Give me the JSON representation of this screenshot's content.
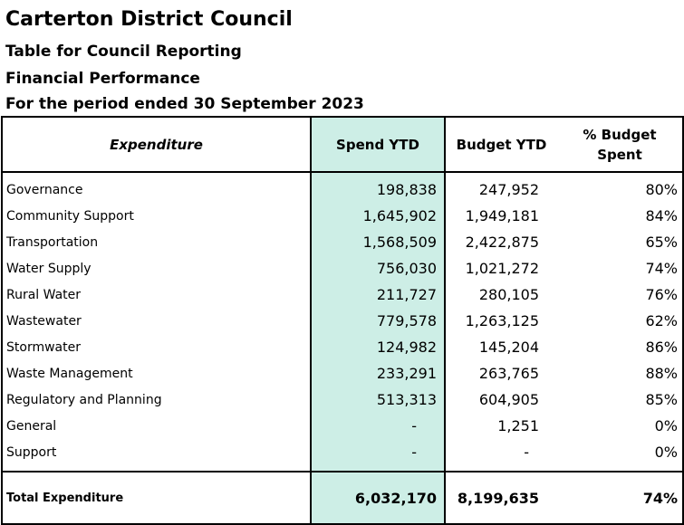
{
  "header": {
    "org": "Carterton District Council",
    "subtitle": "Table for Council Reporting",
    "section": "Financial Performance",
    "period": "For the period ended 30 September 2023"
  },
  "table": {
    "columns": [
      "Expenditure",
      "Spend YTD",
      "Budget YTD",
      "% Budget Spent"
    ],
    "rows": [
      {
        "name": "Governance",
        "spend": "198,838",
        "budget": "247,952",
        "pct": "80%"
      },
      {
        "name": "Community Support",
        "spend": "1,645,902",
        "budget": "1,949,181",
        "pct": "84%"
      },
      {
        "name": "Transportation",
        "spend": "1,568,509",
        "budget": "2,422,875",
        "pct": "65%"
      },
      {
        "name": "Water Supply",
        "spend": "756,030",
        "budget": "1,021,272",
        "pct": "74%"
      },
      {
        "name": "Rural Water",
        "spend": "211,727",
        "budget": "280,105",
        "pct": "76%"
      },
      {
        "name": "Wastewater",
        "spend": "779,578",
        "budget": "1,263,125",
        "pct": "62%"
      },
      {
        "name": "Stormwater",
        "spend": "124,982",
        "budget": "145,204",
        "pct": "86%"
      },
      {
        "name": "Waste Management",
        "spend": "233,291",
        "budget": "263,765",
        "pct": "88%"
      },
      {
        "name": "Regulatory and Planning",
        "spend": "513,313",
        "budget": "604,905",
        "pct": "85%"
      },
      {
        "name": "General",
        "spend": "-",
        "budget": "1,251",
        "pct": "0%"
      },
      {
        "name": "Support",
        "spend": "-",
        "budget": "-",
        "pct": "0%"
      }
    ],
    "total": {
      "name": "Total Expenditure",
      "spend": "6,032,170",
      "budget": "8,199,635",
      "pct": "74%"
    }
  },
  "colors": {
    "spend_highlight": "#cdeee6",
    "border": "#000000"
  }
}
